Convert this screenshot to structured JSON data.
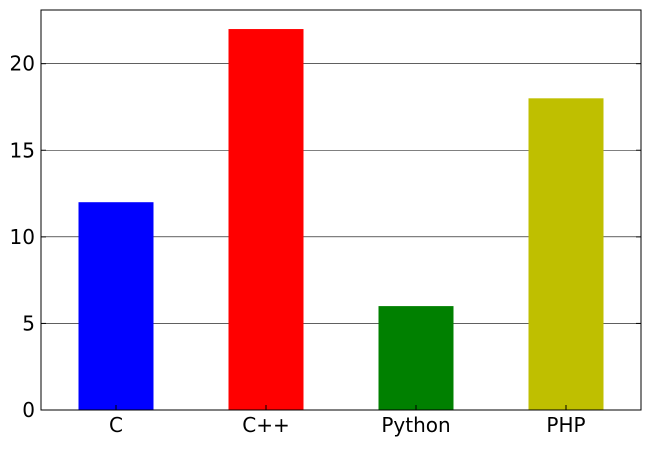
{
  "chart_data": {
    "type": "bar",
    "title": "",
    "xlabel": "",
    "ylabel": "",
    "categories": [
      "C",
      "C++",
      "Python",
      "PHP"
    ],
    "values": [
      12,
      22,
      6,
      18
    ],
    "colors": [
      "#0000ff",
      "#ff0000",
      "#008000",
      "#bfbf00"
    ],
    "ylim": [
      0,
      23.1
    ],
    "yticks": [
      0,
      5,
      10,
      15,
      20
    ],
    "ytick_labels": [
      "0",
      "5",
      "10",
      "15",
      "20"
    ],
    "grid": "y-major",
    "legend": "none"
  }
}
